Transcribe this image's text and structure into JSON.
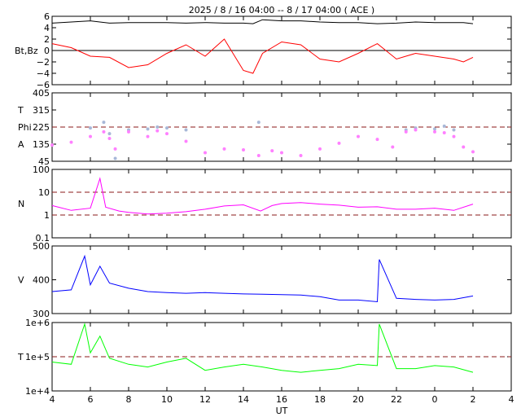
{
  "title": "2025 /  8 / 16   04:00 -- 8 / 17  04:00 ( ACE )",
  "x_label": "UT",
  "x_ticks": [
    "4",
    "6",
    "8",
    "10",
    "12",
    "14",
    "16",
    "18",
    "20",
    "22",
    "0",
    "2",
    "4"
  ],
  "colors": {
    "bt": "#000000",
    "bz": "#ff0000",
    "phi": "#a8b8d8",
    "theta": "#ff80ff",
    "density": "#ff00ff",
    "speed": "#0000ff",
    "temperature": "#00ff00",
    "ref_line": "#8b1a1a"
  },
  "chart_data": [
    {
      "type": "line",
      "panel": "magnetic-field",
      "ylabel": "Bt,Bz",
      "ylim": [
        -6,
        6
      ],
      "yticks": [
        "6",
        "4",
        "2",
        "0",
        "−2",
        "−4",
        "−6"
      ],
      "zero_line": 0,
      "x": [
        4.0,
        5.0,
        6.0,
        7.0,
        8.0,
        9.0,
        10.0,
        11.0,
        12.0,
        13.0,
        14.0,
        14.5,
        15.0,
        16.0,
        17.0,
        18.0,
        19.0,
        20.0,
        21.0,
        22.0,
        23.0,
        24.0,
        25.0,
        25.5,
        26.0
      ],
      "series": [
        {
          "name": "Bt",
          "values": [
            4.8,
            5.0,
            5.2,
            4.8,
            4.9,
            4.9,
            4.9,
            4.8,
            4.9,
            4.8,
            4.8,
            4.7,
            5.4,
            5.2,
            5.2,
            5.0,
            4.9,
            4.9,
            4.7,
            4.8,
            5.0,
            4.9,
            4.9,
            4.9,
            4.7
          ]
        },
        {
          "name": "Bz",
          "values": [
            1.2,
            0.5,
            -1.0,
            -1.2,
            -3.0,
            -2.5,
            -0.5,
            1.0,
            -1.0,
            2.0,
            -3.5,
            -4.0,
            -0.5,
            1.5,
            1.0,
            -1.5,
            -2.0,
            -0.5,
            1.2,
            -1.5,
            -0.5,
            -1.0,
            -1.5,
            -2.0,
            -1.2
          ]
        }
      ]
    },
    {
      "type": "scatter",
      "panel": "angles",
      "ylabels": [
        "T",
        "Phi",
        "A"
      ],
      "ylim": [
        45,
        405
      ],
      "yticks": [
        "405",
        "315",
        "225",
        "135",
        "45"
      ],
      "ref_lines": [
        225
      ],
      "x": [
        4.0,
        5.0,
        6.0,
        6.7,
        7.0,
        7.3,
        8.0,
        9.0,
        9.5,
        10.0,
        11.0,
        12.0,
        13.0,
        14.0,
        14.8,
        15.5,
        16.0,
        17.0,
        18.0,
        19.0,
        20.0,
        21.0,
        21.8,
        22.5,
        23.0,
        24.0,
        24.5,
        25.0,
        25.5,
        26.0
      ],
      "series": [
        {
          "name": "Phi",
          "values": [
            null,
            null,
            220,
            250,
            190,
            60,
            210,
            215,
            225,
            220,
            210,
            null,
            null,
            null,
            250,
            null,
            null,
            null,
            null,
            null,
            null,
            null,
            null,
            210,
            220,
            215,
            230,
            210,
            null,
            null
          ]
        },
        {
          "name": "Theta",
          "values": [
            130,
            145,
            175,
            200,
            165,
            110,
            200,
            175,
            205,
            190,
            150,
            90,
            110,
            105,
            75,
            100,
            90,
            75,
            110,
            140,
            175,
            160,
            120,
            200,
            210,
            200,
            195,
            175,
            120,
            95
          ]
        }
      ]
    },
    {
      "type": "line",
      "panel": "density",
      "ylabel": "N",
      "scale": "log",
      "ylim": [
        0.1,
        100
      ],
      "yticks": [
        "100",
        "10",
        "1",
        "0.1"
      ],
      "ref_lines": [
        1,
        10
      ],
      "x": [
        4.0,
        5.0,
        6.0,
        6.5,
        6.8,
        7.5,
        8.0,
        9.0,
        10.0,
        11.0,
        12.0,
        13.0,
        14.0,
        14.9,
        15.5,
        16.0,
        17.0,
        18.0,
        19.0,
        20.0,
        21.0,
        22.0,
        23.0,
        24.0,
        25.0,
        26.0
      ],
      "series": [
        {
          "name": "N",
          "values": [
            2.6,
            1.6,
            2.0,
            40,
            2.2,
            1.5,
            1.3,
            1.1,
            1.2,
            1.4,
            1.8,
            2.5,
            2.8,
            1.5,
            2.6,
            3.2,
            3.5,
            3.0,
            2.7,
            2.2,
            2.3,
            1.8,
            1.8,
            2.0,
            1.6,
            3.0
          ]
        }
      ]
    },
    {
      "type": "line",
      "panel": "speed",
      "ylabel": "V",
      "ylim": [
        300,
        500
      ],
      "yticks": [
        "500",
        "400",
        "300"
      ],
      "x": [
        4.0,
        5.0,
        5.7,
        6.0,
        6.5,
        7.0,
        8.0,
        9.0,
        10.0,
        11.0,
        12.0,
        13.0,
        14.0,
        15.0,
        16.0,
        17.0,
        18.0,
        19.0,
        20.0,
        21.0,
        21.1,
        22.0,
        23.0,
        24.0,
        25.0,
        26.0
      ],
      "series": [
        {
          "name": "V",
          "values": [
            365,
            370,
            470,
            385,
            440,
            390,
            375,
            365,
            362,
            360,
            362,
            360,
            358,
            357,
            356,
            355,
            350,
            340,
            340,
            335,
            460,
            345,
            342,
            340,
            342,
            352
          ]
        }
      ]
    },
    {
      "type": "line",
      "panel": "temperature",
      "ylabel": "T",
      "scale": "log",
      "ylim": [
        10000,
        1000000
      ],
      "yticks": [
        "1e+6",
        "1e+5",
        "1e+4"
      ],
      "ref_lines": [
        100000
      ],
      "x": [
        4.0,
        5.0,
        5.7,
        6.0,
        6.5,
        7.0,
        8.0,
        9.0,
        10.0,
        11.0,
        12.0,
        13.0,
        14.0,
        15.0,
        16.0,
        17.0,
        18.0,
        19.0,
        20.0,
        21.0,
        21.1,
        22.0,
        23.0,
        24.0,
        25.0,
        26.0
      ],
      "series": [
        {
          "name": "T",
          "values": [
            70000,
            60000,
            900000,
            130000,
            400000,
            90000,
            60000,
            50000,
            70000,
            90000,
            40000,
            50000,
            60000,
            50000,
            40000,
            35000,
            40000,
            45000,
            60000,
            55000,
            900000,
            45000,
            45000,
            55000,
            50000,
            35000
          ]
        }
      ]
    }
  ]
}
